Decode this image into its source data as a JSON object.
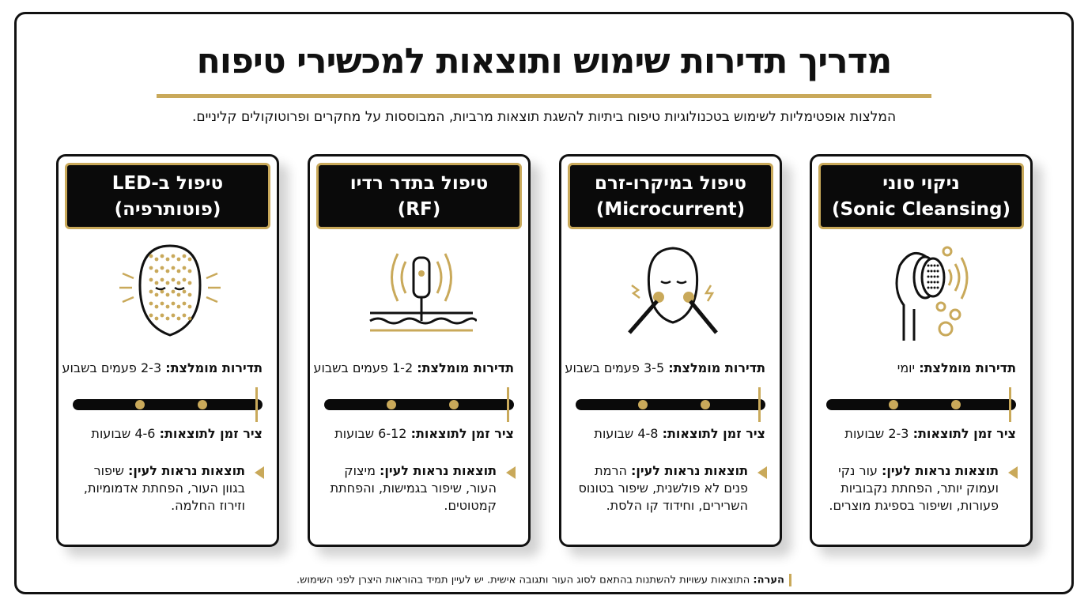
{
  "title": "מדריך תדירות שימוש ותוצאות למכשירי טיפוח",
  "subtitle": "המלצות אופטימליות לשימוש בטכנולוגיות טיפוח ביתיות להשגת תוצאות מרביות, המבוססות על מחקרים ופרוטוקולים קליניים.",
  "labels": {
    "frequency": "תדירות מומלצת:",
    "timeline": "ציר זמן לתוצאות:",
    "results": "תוצאות נראות לעין:"
  },
  "accent_color": "#C9A95A",
  "cards": [
    {
      "title_he": "ניקוי סוני",
      "title_en": "(Sonic Cleansing)",
      "icon": "sonic-brush-icon",
      "frequency": "יומי",
      "timeline": "2-3 שבועות",
      "results": "עור נקי ועמוק יותר, הפחתת נקבוביות פעורות, ושיפור בספיגת מוצרים."
    },
    {
      "title_he": "טיפול במיקרו-זרם",
      "title_en": "(Microcurrent)",
      "icon": "microcurrent-face-icon",
      "frequency": "3-5 פעמים בשבוע",
      "timeline": "4-8 שבועות",
      "results": "הרמת פנים לא פולשנית, שיפור בטונוס השרירים, וחידוד קו הלסת."
    },
    {
      "title_he": "טיפול בתדר רדיו",
      "title_en": "(RF)",
      "icon": "rf-device-icon",
      "frequency": "1-2 פעמים בשבוע",
      "timeline": "6-12 שבועות",
      "results": "מיצוק העור, שיפור בגמישות, והפחתת קמטוטים."
    },
    {
      "title_he": "טיפול ב-LED",
      "title_en": "(פוטותרפיה)",
      "icon": "led-mask-icon",
      "frequency": "2-3 פעמים בשבוע",
      "timeline": "4-6 שבועות",
      "results": "שיפור בגוון העור, הפחתת אדמומיות, וזירוז החלמה."
    }
  ],
  "note": {
    "label": "הערה:",
    "text": "התוצאות עשויות להשתנות בהתאם לסוג העור ותגובה אישית. יש לעיין תמיד בהוראות היצרן לפני השימוש."
  }
}
